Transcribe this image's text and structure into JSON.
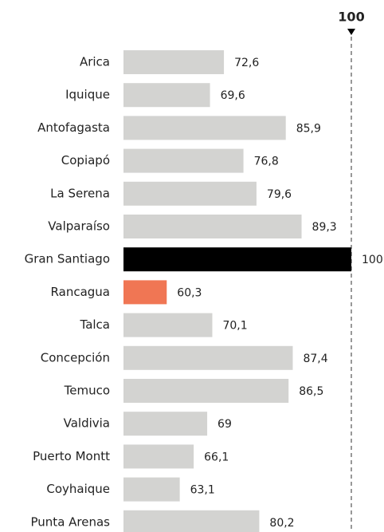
{
  "chart_data": {
    "type": "barh",
    "categories": [
      "Arica",
      "Iquique",
      "Antofagasta",
      "Copiapó",
      "La Serena",
      "Valparaíso",
      "Gran Santiago",
      "Rancagua",
      "Talca",
      "Concepción",
      "Temuco",
      "Valdivia",
      "Puerto Montt",
      "Coyhaique",
      "Punta Arenas"
    ],
    "values": [
      72.6,
      69.6,
      85.9,
      76.8,
      79.6,
      89.3,
      100,
      60.3,
      70.1,
      87.4,
      86.5,
      69,
      66.1,
      63.1,
      80.2
    ],
    "value_labels": [
      "72,6",
      "69,6",
      "85,9",
      "76,8",
      "79,6",
      "89,3",
      "100",
      "60,3",
      "70,1",
      "87,4",
      "86,5",
      "69",
      "66,1",
      "63,1",
      "80,2"
    ],
    "colors": [
      "#d3d3d1",
      "#d3d3d1",
      "#d3d3d1",
      "#d3d3d1",
      "#d3d3d1",
      "#d3d3d1",
      "#000000",
      "#f07654",
      "#d3d3d1",
      "#d3d3d1",
      "#d3d3d1",
      "#d3d3d1",
      "#d3d3d1",
      "#d3d3d1",
      "#d3d3d1"
    ],
    "xlim": [
      51,
      100
    ],
    "reference_line": 100
  }
}
